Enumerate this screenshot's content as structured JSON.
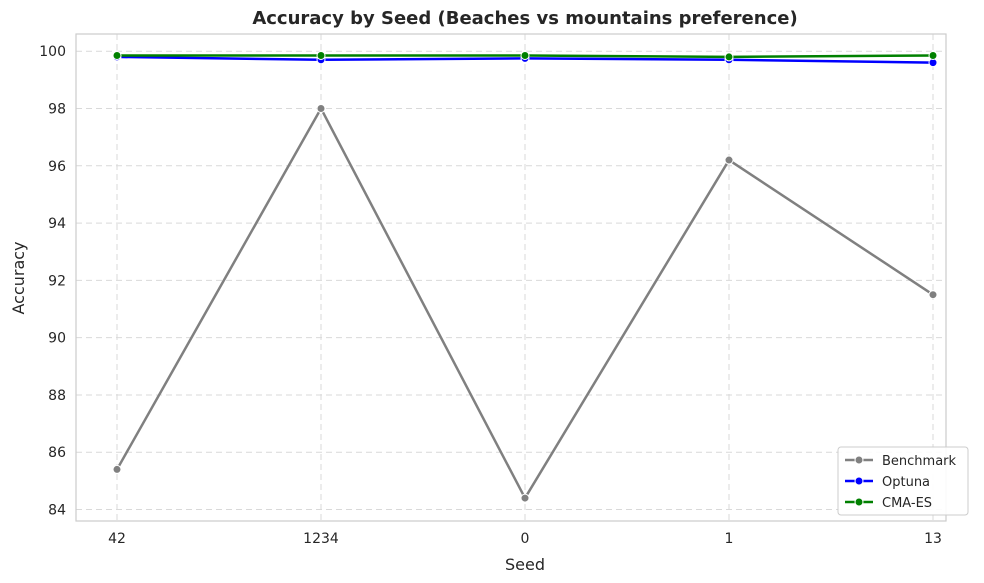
{
  "chart_data": {
    "type": "line",
    "title": "Accuracy by Seed (Beaches vs mountains preference)",
    "xlabel": "Seed",
    "ylabel": "Accuracy",
    "categories": [
      "42",
      "1234",
      "0",
      "1",
      "13"
    ],
    "ylim": [
      83.6,
      100.6
    ],
    "yticks": [
      84,
      86,
      88,
      90,
      92,
      94,
      96,
      98,
      100
    ],
    "grid": true,
    "legend_position": "bottom-right",
    "series": [
      {
        "name": "Benchmark",
        "color": "#808080",
        "values": [
          85.4,
          98.0,
          84.4,
          96.2,
          91.5
        ]
      },
      {
        "name": "Optuna",
        "color": "#0000ff",
        "values": [
          99.8,
          99.7,
          99.75,
          99.7,
          99.6
        ]
      },
      {
        "name": "CMA-ES",
        "color": "#008000",
        "values": [
          99.85,
          99.85,
          99.85,
          99.8,
          99.85
        ]
      }
    ]
  }
}
